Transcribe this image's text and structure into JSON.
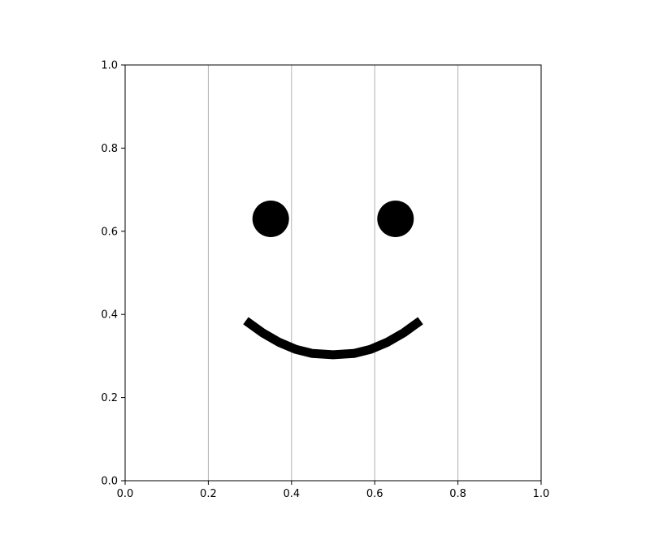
{
  "chart_data": {
    "type": "scatter",
    "title": "",
    "xlabel": "",
    "ylabel": "",
    "xlim": [
      0.0,
      1.0
    ],
    "ylim": [
      0.0,
      1.0
    ],
    "x_ticks": [
      0.0,
      0.2,
      0.4,
      0.6,
      0.8,
      1.0
    ],
    "y_ticks": [
      0.0,
      0.2,
      0.4,
      0.6,
      0.8,
      1.0
    ],
    "x_tick_labels": [
      "0.0",
      "0.2",
      "0.4",
      "0.6",
      "0.8",
      "1.0"
    ],
    "y_tick_labels": [
      "0.0",
      "0.2",
      "0.4",
      "0.6",
      "0.8",
      "1.0"
    ],
    "grid": "vertical lines at x = 0.2, 0.4, 0.6, 0.8",
    "grid_x": [
      0.2,
      0.4,
      0.6,
      0.8
    ],
    "series": [
      {
        "kind": "points",
        "x": [
          0.35,
          0.65
        ],
        "y": [
          0.63,
          0.63
        ],
        "color": "#000000"
      },
      {
        "kind": "curve",
        "x": [
          0.29,
          0.33,
          0.37,
          0.41,
          0.45,
          0.5,
          0.55,
          0.59,
          0.63,
          0.67,
          0.71
        ],
        "y": [
          0.385,
          0.356,
          0.333,
          0.316,
          0.306,
          0.303,
          0.306,
          0.316,
          0.333,
          0.356,
          0.385
        ],
        "color": "#000000"
      }
    ],
    "colors": {
      "axis": "#000000",
      "grid": "#b0b0b0",
      "marks": "#000000",
      "background": "#ffffff"
    }
  }
}
